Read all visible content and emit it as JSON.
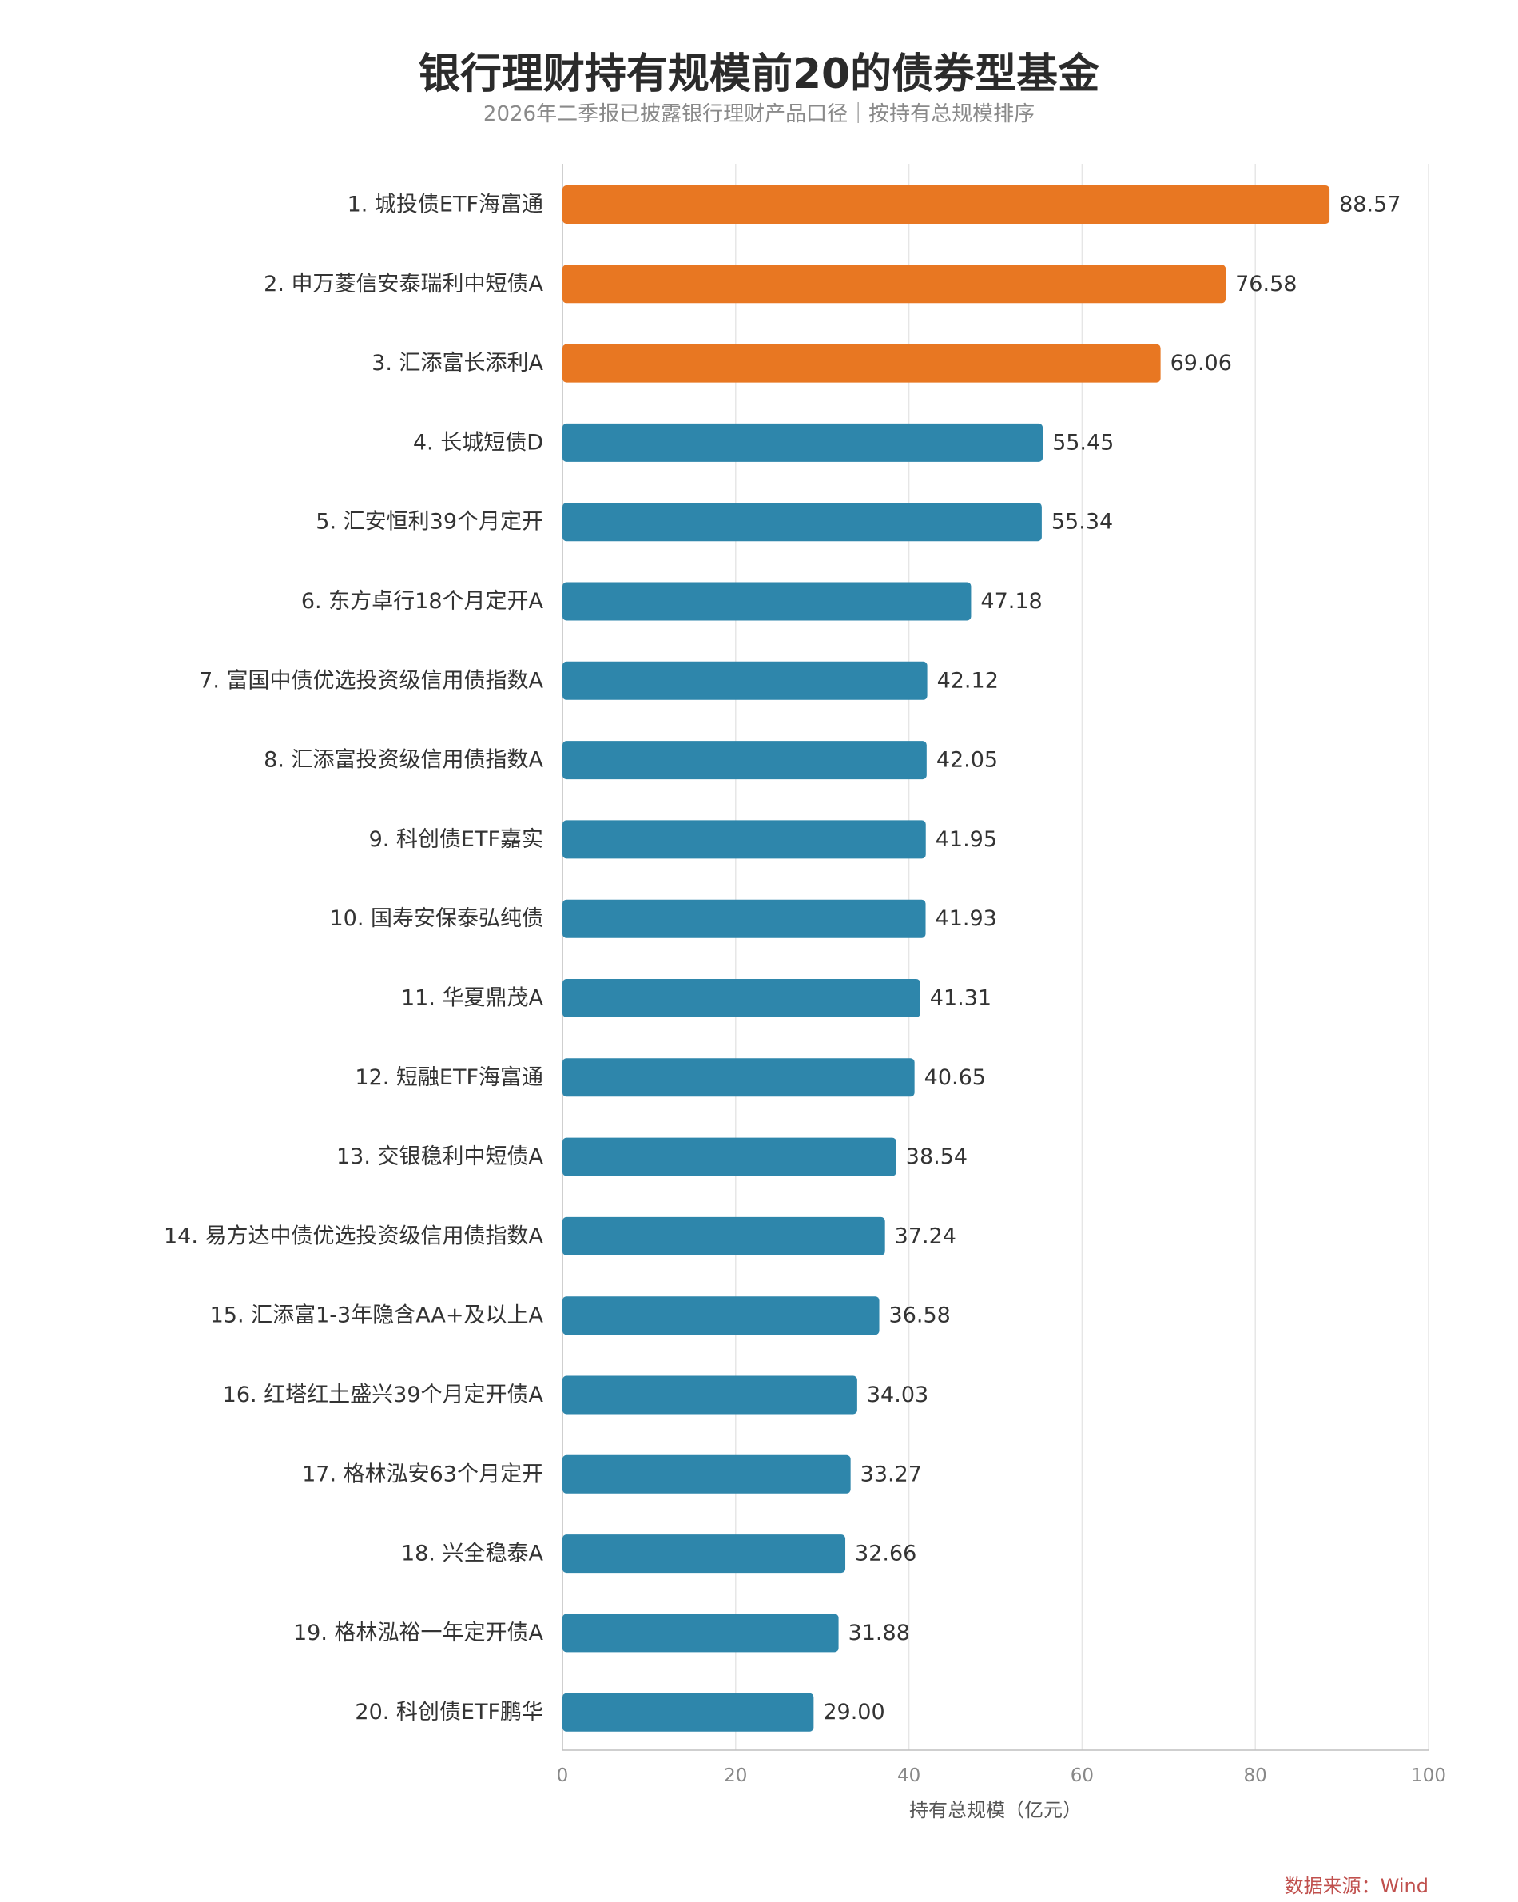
{
  "header": {
    "title": "银行理财持有规模前20的债券型基金",
    "subtitle": "2026年二季报已披露银行理财产品口径｜按持有总规模排序"
  },
  "source_text": "数据来源：Wind",
  "colors": {
    "highlight": "#e87722",
    "normal": "#2e86ab",
    "grid": "#e6e6e6",
    "axis": "#bfbfbf",
    "label": "#333333",
    "tick": "#888888"
  },
  "chart_data": {
    "type": "bar",
    "orientation": "horizontal",
    "title": "银行理财持有规模前20的债券型基金",
    "subtitle": "2026年二季报已披露银行理财产品口径｜按持有总规模排序",
    "xlabel": "持有总规模（亿元）",
    "ylabel": "",
    "xlim": [
      0,
      100
    ],
    "xticks": [
      0,
      20,
      40,
      60,
      80,
      100
    ],
    "grid": "vertical",
    "highlight_top_n": 3,
    "categories": [
      "1. 城投债ETF海富通",
      "2. 申万菱信安泰瑞利中短债A",
      "3. 汇添富长添利A",
      "4. 长城短债D",
      "5. 汇安恒利39个月定开",
      "6. 东方卓行18个月定开A",
      "7. 富国中债优选投资级信用债指数A",
      "8. 汇添富投资级信用债指数A",
      "9. 科创债ETF嘉实",
      "10. 国寿安保泰弘纯债",
      "11. 华夏鼎茂A",
      "12. 短融ETF海富通",
      "13. 交银稳利中短债A",
      "14. 易方达中债优选投资级信用债指数A",
      "15. 汇添富1-3年隐含AA+及以上A",
      "16. 红塔红土盛兴39个月定开债A",
      "17. 格林泓安63个月定开",
      "18. 兴全稳泰A",
      "19. 格林泓裕一年定开债A",
      "20. 科创债ETF鹏华"
    ],
    "values": [
      88.57,
      76.58,
      69.06,
      55.45,
      55.34,
      47.18,
      42.12,
      42.05,
      41.95,
      41.93,
      41.31,
      40.65,
      38.54,
      37.24,
      36.58,
      34.03,
      33.27,
      32.66,
      31.88,
      29.0
    ]
  }
}
